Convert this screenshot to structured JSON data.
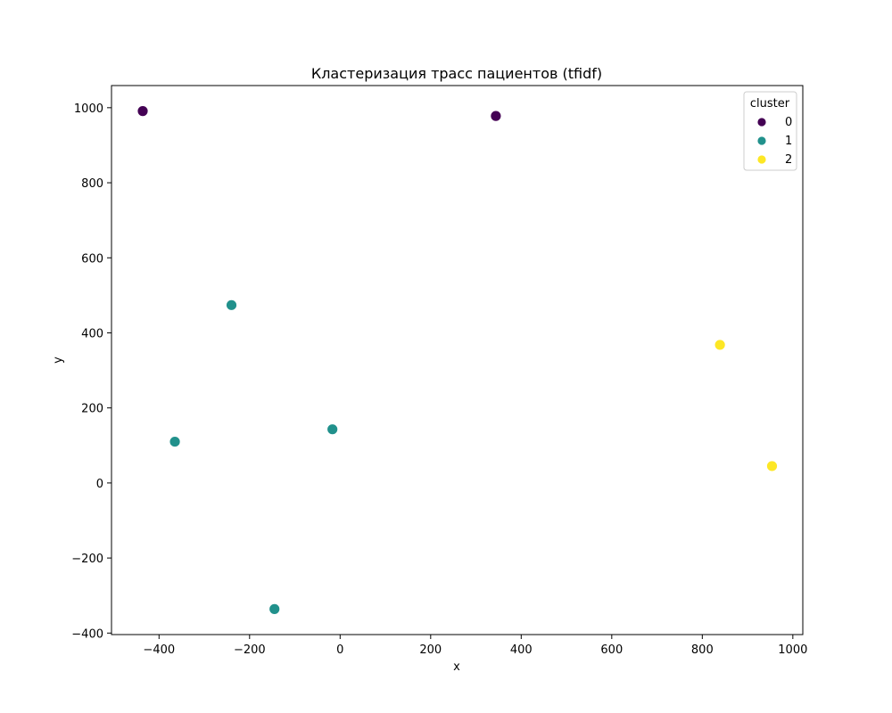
{
  "chart_data": {
    "type": "scatter",
    "title": "Кластеризация трасс пациентов (tfidf)",
    "xlabel": "x",
    "ylabel": "y",
    "xlim": [
      -505,
      1022
    ],
    "ylim": [
      -404,
      1059
    ],
    "xticks": [
      -400,
      -200,
      0,
      200,
      400,
      600,
      800,
      1000
    ],
    "yticks": [
      -400,
      -200,
      0,
      200,
      400,
      600,
      800,
      1000
    ],
    "xtick_labels": [
      "−400",
      "−200",
      "0",
      "200",
      "400",
      "600",
      "800",
      "1000"
    ],
    "ytick_labels": [
      "−400",
      "−200",
      "0",
      "200",
      "400",
      "600",
      "800",
      "1000"
    ],
    "grid": false,
    "legend": {
      "title": "cluster",
      "placement": "top-right",
      "entries": [
        {
          "label": "0",
          "color": "#440154"
        },
        {
          "label": "1",
          "color": "#21918c"
        },
        {
          "label": "2",
          "color": "#fde725"
        }
      ]
    },
    "series": [
      {
        "name": "0",
        "color": "#440154",
        "points": [
          [
            -436,
            991
          ],
          [
            344,
            978
          ]
        ]
      },
      {
        "name": "1",
        "color": "#21918c",
        "points": [
          [
            -240,
            474
          ],
          [
            -365,
            110
          ],
          [
            -17,
            143
          ],
          [
            -145,
            -336
          ]
        ]
      },
      {
        "name": "2",
        "color": "#fde725",
        "points": [
          [
            839,
            368
          ],
          [
            954,
            45
          ]
        ]
      }
    ]
  }
}
